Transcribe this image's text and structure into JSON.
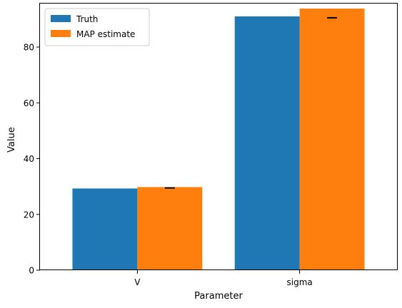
{
  "chart_data": {
    "type": "bar",
    "categories": [
      "V",
      "sigma"
    ],
    "series": [
      {
        "name": "Truth",
        "values": [
          29.3,
          91.0
        ],
        "color": "#1f77b4"
      },
      {
        "name": "MAP estimate",
        "values": [
          29.8,
          93.8
        ],
        "color": "#ff7f0e",
        "error_markers": [
          29.5,
          90.5
        ]
      }
    ],
    "xlabel": "Parameter",
    "ylabel": "Value",
    "ylim": [
      0,
      95.6
    ],
    "yticks": [
      0,
      20,
      40,
      60,
      80
    ],
    "legend": "top-left",
    "grid": false
  }
}
